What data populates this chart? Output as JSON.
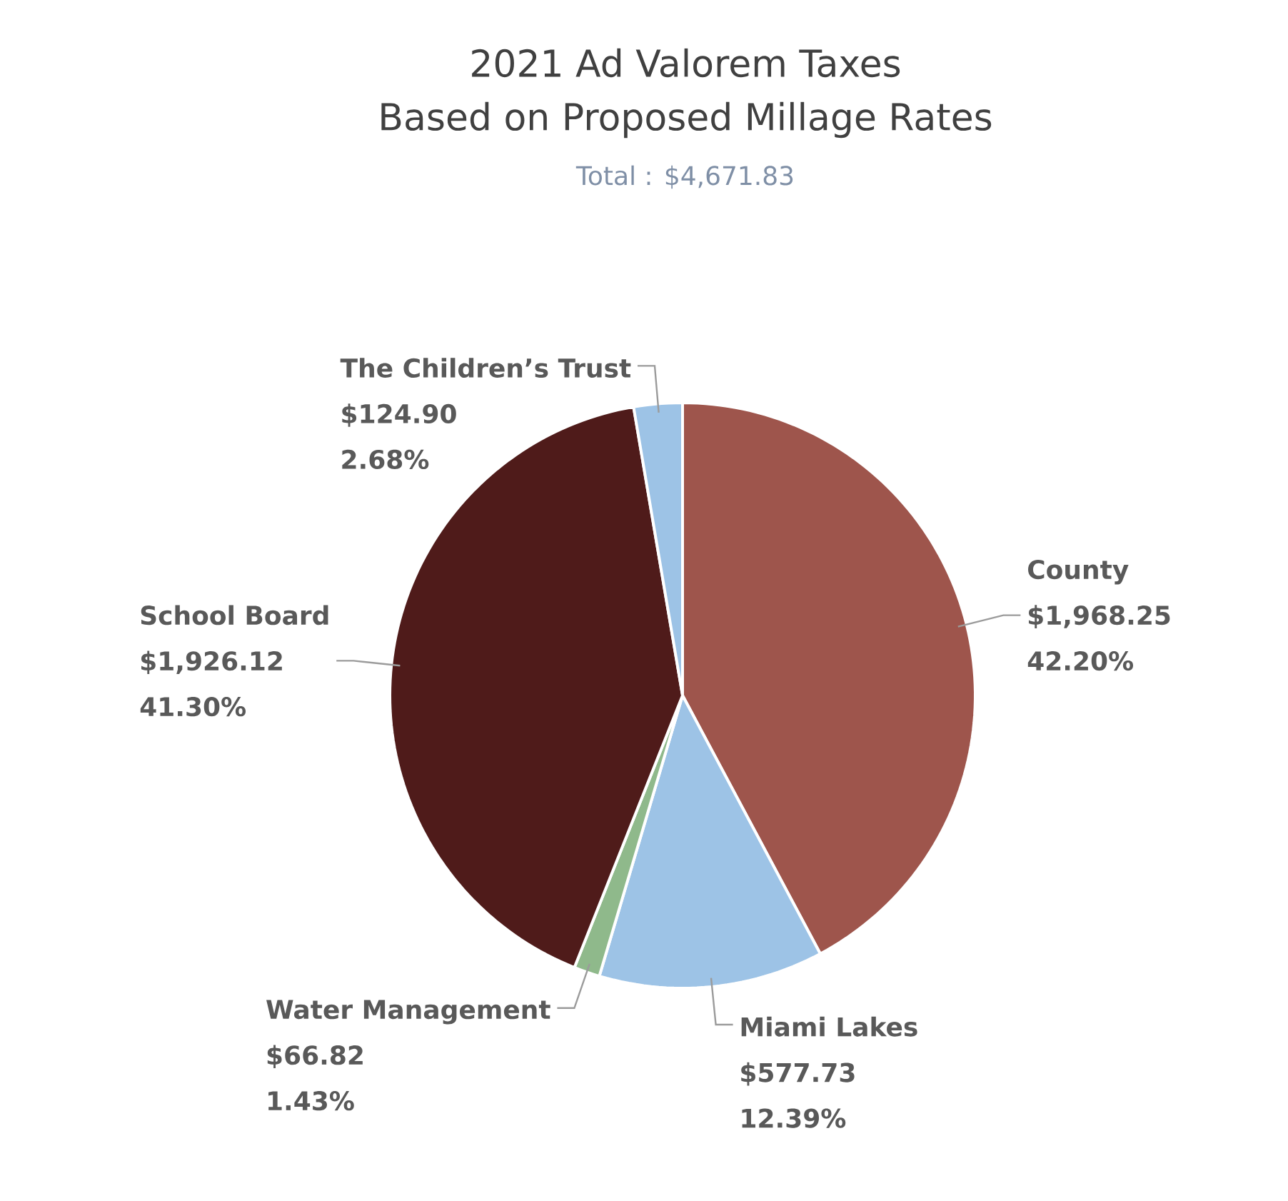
{
  "chart_data": {
    "type": "pie",
    "title": "2021 Ad Valorem Taxes",
    "subtitle": "Based on Proposed Millage Rates",
    "annotations": [
      "Total : $4,671.83",
      {
        "text": "42.20%",
        "x": "County"
      },
      {
        "text": "12.39%",
        "x": "Miami Lakes"
      },
      {
        "text": "1.43%",
        "x": "Water Management"
      },
      {
        "text": "41.30%",
        "x": "School Board"
      },
      {
        "text": "2.68%",
        "x": "The Children’s Trust"
      }
    ],
    "categories": [
      "County",
      "Miami Lakes",
      "Water Management",
      "School Board",
      "The Children’s Trust"
    ],
    "values": [
      1968.25,
      577.73,
      66.82,
      1926.12,
      124.9
    ],
    "colors": [
      "#9e554c",
      "#9dc3e6",
      "#8fb98b",
      "#4f1b1a",
      "#9dc3e6"
    ],
    "value_labels": [
      "$1,968.25",
      "$577.73",
      "$66.82",
      "$1,926.12",
      "$124.90"
    ]
  }
}
